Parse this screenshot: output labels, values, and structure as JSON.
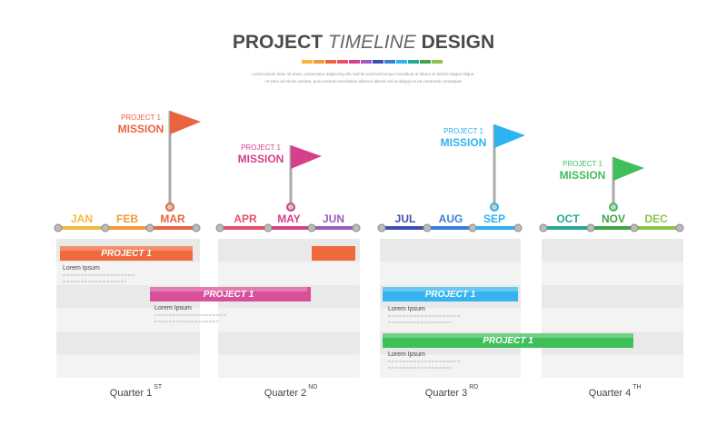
{
  "header": {
    "title_bold_1": "PROJECT",
    "title_italic": "TIMELINE",
    "title_bold_2": "DESIGN",
    "subtitle_lines": [
      "Lorem ipsum dolor sit amet, consectetur adipiscing elit, sed do eiusmod tempor incididunt ut labore et dolore magna aliqua.",
      "Ut enim ad minim veniam, quis nostrud exercitation ullamco laboris nisi ut aliquip ex ea commodo consequat."
    ]
  },
  "months": [
    {
      "label": "JAN",
      "color": "#f5b83d"
    },
    {
      "label": "FEB",
      "color": "#f39a3b"
    },
    {
      "label": "MAR",
      "color": "#e9653f"
    },
    {
      "label": "APR",
      "color": "#e7506b"
    },
    {
      "label": "MAY",
      "color": "#d53f8c"
    },
    {
      "label": "JUN",
      "color": "#9c5bbd"
    },
    {
      "label": "JUL",
      "color": "#3f4fb0"
    },
    {
      "label": "AUG",
      "color": "#3a7fd6"
    },
    {
      "label": "SEP",
      "color": "#2bb4f0"
    },
    {
      "label": "OCT",
      "color": "#27a79a"
    },
    {
      "label": "NOV",
      "color": "#3fa34a"
    },
    {
      "label": "DEC",
      "color": "#8cc44a"
    }
  ],
  "milestones": [
    {
      "label": "PROJECT 1",
      "title": "MISSION",
      "color": "#e9653f"
    },
    {
      "label": "PROJECT 1",
      "title": "MISSION",
      "color": "#d53f8c"
    },
    {
      "label": "PROJECT 1",
      "title": "MISSION",
      "color": "#2bb4f0"
    },
    {
      "label": "PROJECT 1",
      "title": "MISSION",
      "color": "#3fbf5a"
    }
  ],
  "tasks": [
    {
      "label": "PROJECT 1",
      "note": "Lorem Ipsum",
      "color": "#ee6a3a"
    },
    {
      "label": "PROJECT 1",
      "note": "Lorem Ipsum",
      "color": "#d9509a"
    },
    {
      "label": "PROJECT 1",
      "note": "Lorem Ipsum",
      "color": "#36b4ef"
    },
    {
      "label": "PROJECT 1",
      "note": "Lorem Ipsum",
      "color": "#3fbf5a"
    }
  ],
  "quarters": [
    {
      "label": "Quarter 1",
      "suffix": "ST"
    },
    {
      "label": "Quarter 2",
      "suffix": "ND"
    },
    {
      "label": "Quarter 3",
      "suffix": "RD"
    },
    {
      "label": "Quarter 4",
      "suffix": "TH"
    }
  ]
}
